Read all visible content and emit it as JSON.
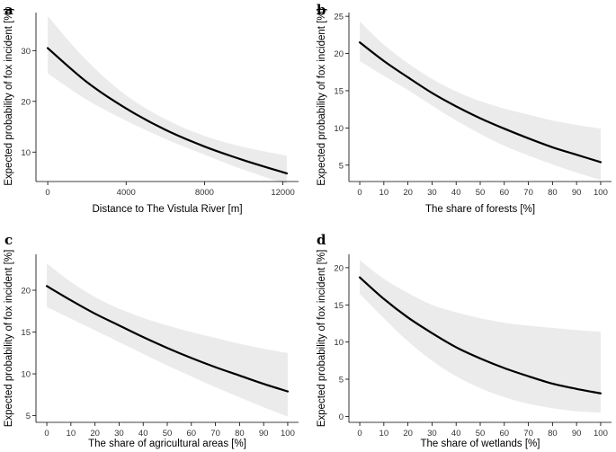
{
  "chart_data": [
    {
      "id": "a",
      "type": "line",
      "panel_label": "a",
      "xlabel": "Distance to The Vistula River [m]",
      "ylabel": "Expected probability of fox incident [%]",
      "xlim": [
        -600,
        12800
      ],
      "ylim": [
        4.2,
        37.5
      ],
      "xticks": [
        0,
        4000,
        8000,
        12000
      ],
      "xtick_labels": [
        "0",
        "4000",
        "8000",
        "12000"
      ],
      "yticks": [
        10,
        20,
        30
      ],
      "ytick_labels": [
        "10",
        "20",
        "30"
      ],
      "grid": false,
      "x": [
        0,
        2000,
        4000,
        6000,
        8000,
        10000,
        12200
      ],
      "y": [
        30.5,
        23.8,
        18.6,
        14.4,
        11.1,
        8.4,
        5.8
      ],
      "ci_upper": [
        36.8,
        28.0,
        21.2,
        16.5,
        13.2,
        11.0,
        9.3
      ],
      "ci_lower": [
        25.5,
        20.3,
        16.2,
        12.6,
        9.5,
        6.5,
        3.7
      ]
    },
    {
      "id": "b",
      "type": "line",
      "panel_label": "b",
      "xlabel": "The share of forests [%]",
      "ylabel": "Expected probability of fox incident [%]",
      "xlim": [
        -4.5,
        104.5
      ],
      "ylim": [
        2.8,
        25.5
      ],
      "xticks": [
        0,
        10,
        20,
        30,
        40,
        50,
        60,
        70,
        80,
        90,
        100
      ],
      "xtick_labels": [
        "0",
        "10",
        "20",
        "30",
        "40",
        "50",
        "60",
        "70",
        "80",
        "90",
        "100"
      ],
      "yticks": [
        5,
        10,
        15,
        20,
        25
      ],
      "ytick_labels": [
        "5",
        "10",
        "15",
        "20",
        "25"
      ],
      "grid": false,
      "x": [
        0,
        10,
        20,
        30,
        40,
        50,
        60,
        70,
        80,
        90,
        100
      ],
      "y": [
        21.5,
        19.0,
        16.8,
        14.7,
        12.9,
        11.3,
        9.9,
        8.6,
        7.4,
        6.4,
        5.4
      ],
      "ci_upper": [
        24.3,
        21.2,
        18.7,
        16.6,
        14.9,
        13.6,
        12.6,
        11.8,
        11.0,
        10.4,
        9.9
      ],
      "ci_lower": [
        19.0,
        17.0,
        15.1,
        13.0,
        11.0,
        9.2,
        7.6,
        6.3,
        5.1,
        4.0,
        3.0
      ]
    },
    {
      "id": "c",
      "type": "line",
      "panel_label": "c",
      "xlabel": "The share of agricultural areas  [%]",
      "ylabel": "Expected probability of fox incident [%]",
      "xlim": [
        -4.5,
        104.5
      ],
      "ylim": [
        4.2,
        24.3
      ],
      "xticks": [
        0,
        10,
        20,
        30,
        40,
        50,
        60,
        70,
        80,
        90,
        100
      ],
      "xtick_labels": [
        "0",
        "10",
        "20",
        "30",
        "40",
        "50",
        "60",
        "70",
        "80",
        "90",
        "100"
      ],
      "yticks": [
        5,
        10,
        15,
        20
      ],
      "ytick_labels": [
        "5",
        "10",
        "15",
        "20"
      ],
      "grid": false,
      "x": [
        0,
        10,
        20,
        30,
        40,
        50,
        60,
        70,
        80,
        90,
        100
      ],
      "y": [
        20.5,
        18.8,
        17.2,
        15.8,
        14.4,
        13.1,
        11.9,
        10.8,
        9.8,
        8.8,
        7.9
      ],
      "ci_upper": [
        23.2,
        21.0,
        19.2,
        17.8,
        16.7,
        15.8,
        15.0,
        14.3,
        13.6,
        13.0,
        12.5
      ],
      "ci_lower": [
        18.0,
        16.6,
        15.2,
        13.8,
        12.4,
        11.0,
        9.7,
        8.4,
        7.2,
        6.0,
        4.9
      ]
    },
    {
      "id": "d",
      "type": "line",
      "panel_label": "d",
      "xlabel": "The share of wetlands  [%]",
      "ylabel": "Expected probability of fox incident [%]",
      "xlim": [
        -4.5,
        104.5
      ],
      "ylim": [
        -0.8,
        21.8
      ],
      "xticks": [
        0,
        10,
        20,
        30,
        40,
        50,
        60,
        70,
        80,
        90,
        100
      ],
      "xtick_labels": [
        "0",
        "10",
        "20",
        "30",
        "40",
        "50",
        "60",
        "70",
        "80",
        "90",
        "100"
      ],
      "yticks": [
        0,
        5,
        10,
        15,
        20
      ],
      "ytick_labels": [
        "0",
        "5",
        "10",
        "15",
        "20"
      ],
      "grid": false,
      "x": [
        0,
        10,
        20,
        30,
        40,
        50,
        60,
        70,
        80,
        90,
        100
      ],
      "y": [
        18.7,
        15.8,
        13.3,
        11.2,
        9.3,
        7.8,
        6.5,
        5.4,
        4.4,
        3.7,
        3.1
      ],
      "ci_upper": [
        21.0,
        18.5,
        16.6,
        15.0,
        14.0,
        13.2,
        12.6,
        12.2,
        11.9,
        11.6,
        11.4
      ],
      "ci_lower": [
        16.5,
        13.2,
        10.1,
        7.5,
        5.4,
        3.8,
        2.6,
        1.7,
        1.1,
        0.7,
        0.5
      ]
    }
  ]
}
